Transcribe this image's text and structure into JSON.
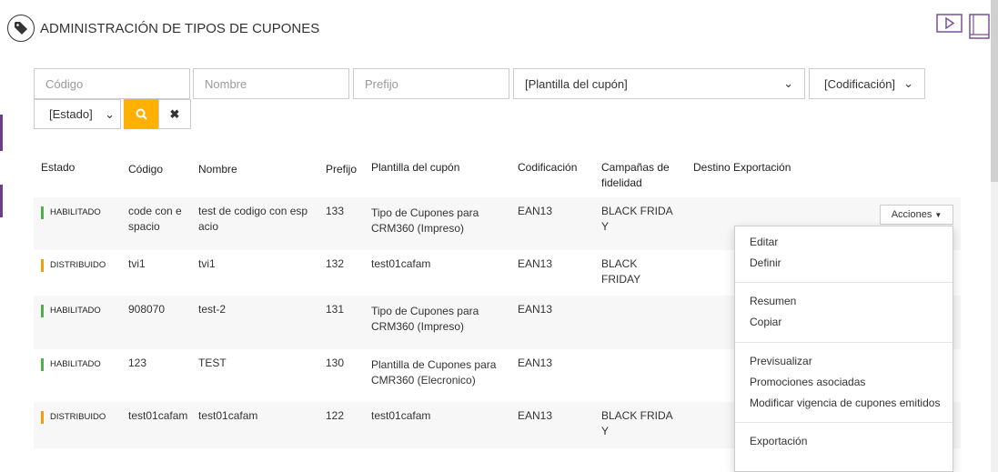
{
  "header": {
    "title": "ADMINISTRACIÓN DE TIPOS DE CUPONES",
    "icons": [
      "tag-icon",
      "video-icon",
      "book-icon"
    ]
  },
  "filters": {
    "codigo_placeholder": "Código",
    "nombre_placeholder": "Nombre",
    "prefijo_placeholder": "Prefijo",
    "plantilla": "[Plantilla del cupón]",
    "codificacion": "[Codificación]",
    "estado": "[Estado]"
  },
  "table": {
    "headers": [
      "Estado",
      "Código",
      "Nombre",
      "Prefijo",
      "Plantilla del cupón",
      "Codificación",
      "Campañas de fidelidad",
      "Destino Exportación"
    ],
    "rows": [
      {
        "estado": "HABILITADO",
        "codigo": "code con e spacio",
        "nombre": "test de codigo con esp acio",
        "prefijo": "133",
        "plantilla": "Tipo de Cupones para CRM360 (Impreso)",
        "codificacion": "EAN13",
        "campanas": "BLACK FRIDA Y",
        "destino": ""
      },
      {
        "estado": "DISTRIBUIDO",
        "codigo": "tvi1",
        "nombre": "tvi1",
        "prefijo": "132",
        "plantilla": "test01cafam",
        "codificacion": "EAN13",
        "campanas": "BLACK FRIDAY",
        "destino": ""
      },
      {
        "estado": "HABILITADO",
        "codigo": "908070",
        "nombre": "test-2",
        "prefijo": "131",
        "plantilla": "Tipo de Cupones para CRM360 (Impreso)",
        "codificacion": "EAN13",
        "campanas": "",
        "destino": ""
      },
      {
        "estado": "HABILITADO",
        "codigo": "123",
        "nombre": "TEST",
        "prefijo": "130",
        "plantilla": "Plantilla de Cupones para CMR360 (Elecronico)",
        "codificacion": "EAN13",
        "campanas": "",
        "destino": ""
      },
      {
        "estado": "DISTRIBUIDO",
        "codigo": "test01cafam",
        "nombre": "test01cafam",
        "prefijo": "122",
        "plantilla": "test01cafam",
        "codificacion": "EAN13",
        "campanas": "BLACK FRIDA Y",
        "destino": ""
      }
    ]
  },
  "actions": {
    "label": "Acciones",
    "menu": [
      "Editar",
      "Definir",
      "Resumen",
      "Copiar",
      "Previsualizar",
      "Promociones asociadas",
      "Modificar vigencia de cupones emitidos",
      "Exportación"
    ]
  },
  "colors": {
    "accent": "#ffb000",
    "brand": "#6b3f8f",
    "habilitado": "#4caf50",
    "distribuido": "#f39c12"
  }
}
